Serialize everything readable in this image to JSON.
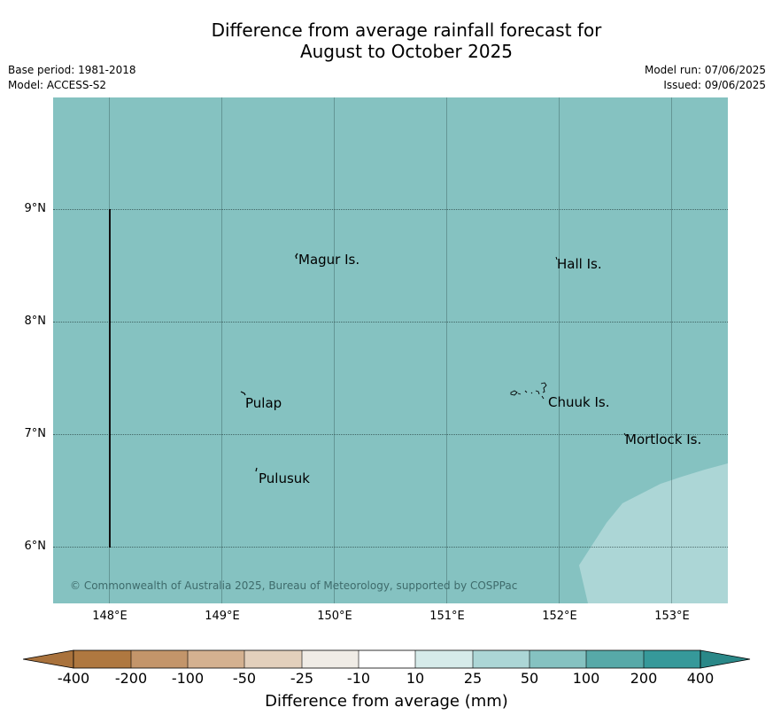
{
  "title_line1": "Difference from average rainfall forecast for",
  "title_line2": "August to October 2025",
  "meta_left": {
    "base_period": "Base period: 1981-2018",
    "model": "Model: ACCESS-S2"
  },
  "meta_right": {
    "model_run": "Model run: 07/06/2025",
    "issued": "Issued: 09/06/2025"
  },
  "map": {
    "latitude_labels": [
      "9°N",
      "8°N",
      "7°N",
      "6°N"
    ],
    "longitude_labels": [
      "148°E",
      "149°E",
      "150°E",
      "151°E",
      "152°E",
      "153°E"
    ],
    "places": [
      "Magur Is.",
      "Hall Is.",
      "Pulap",
      "Chuuk Is.",
      "Mortlock Is.",
      "Pulusuk"
    ],
    "copyright": "© Commonwealth of Australia 2025, Bureau of Meteorology, supported by COSPPac",
    "base_color": "#85c2c1",
    "secondary_color": "#acd6d6"
  },
  "colorbar": {
    "ticks": [
      "-400",
      "-200",
      "-100",
      "-50",
      "-25",
      "-10",
      "10",
      "25",
      "50",
      "100",
      "200",
      "400"
    ],
    "colors": [
      "#a9723c",
      "#af7840",
      "#c3956a",
      "#d4b190",
      "#e3d0bc",
      "#f0ece6",
      "#ffffff",
      "#d6ebea",
      "#acd6d6",
      "#85c2c1",
      "#57a9a8",
      "#36999a",
      "#2a8888"
    ],
    "label": "Difference from average (mm)"
  }
}
